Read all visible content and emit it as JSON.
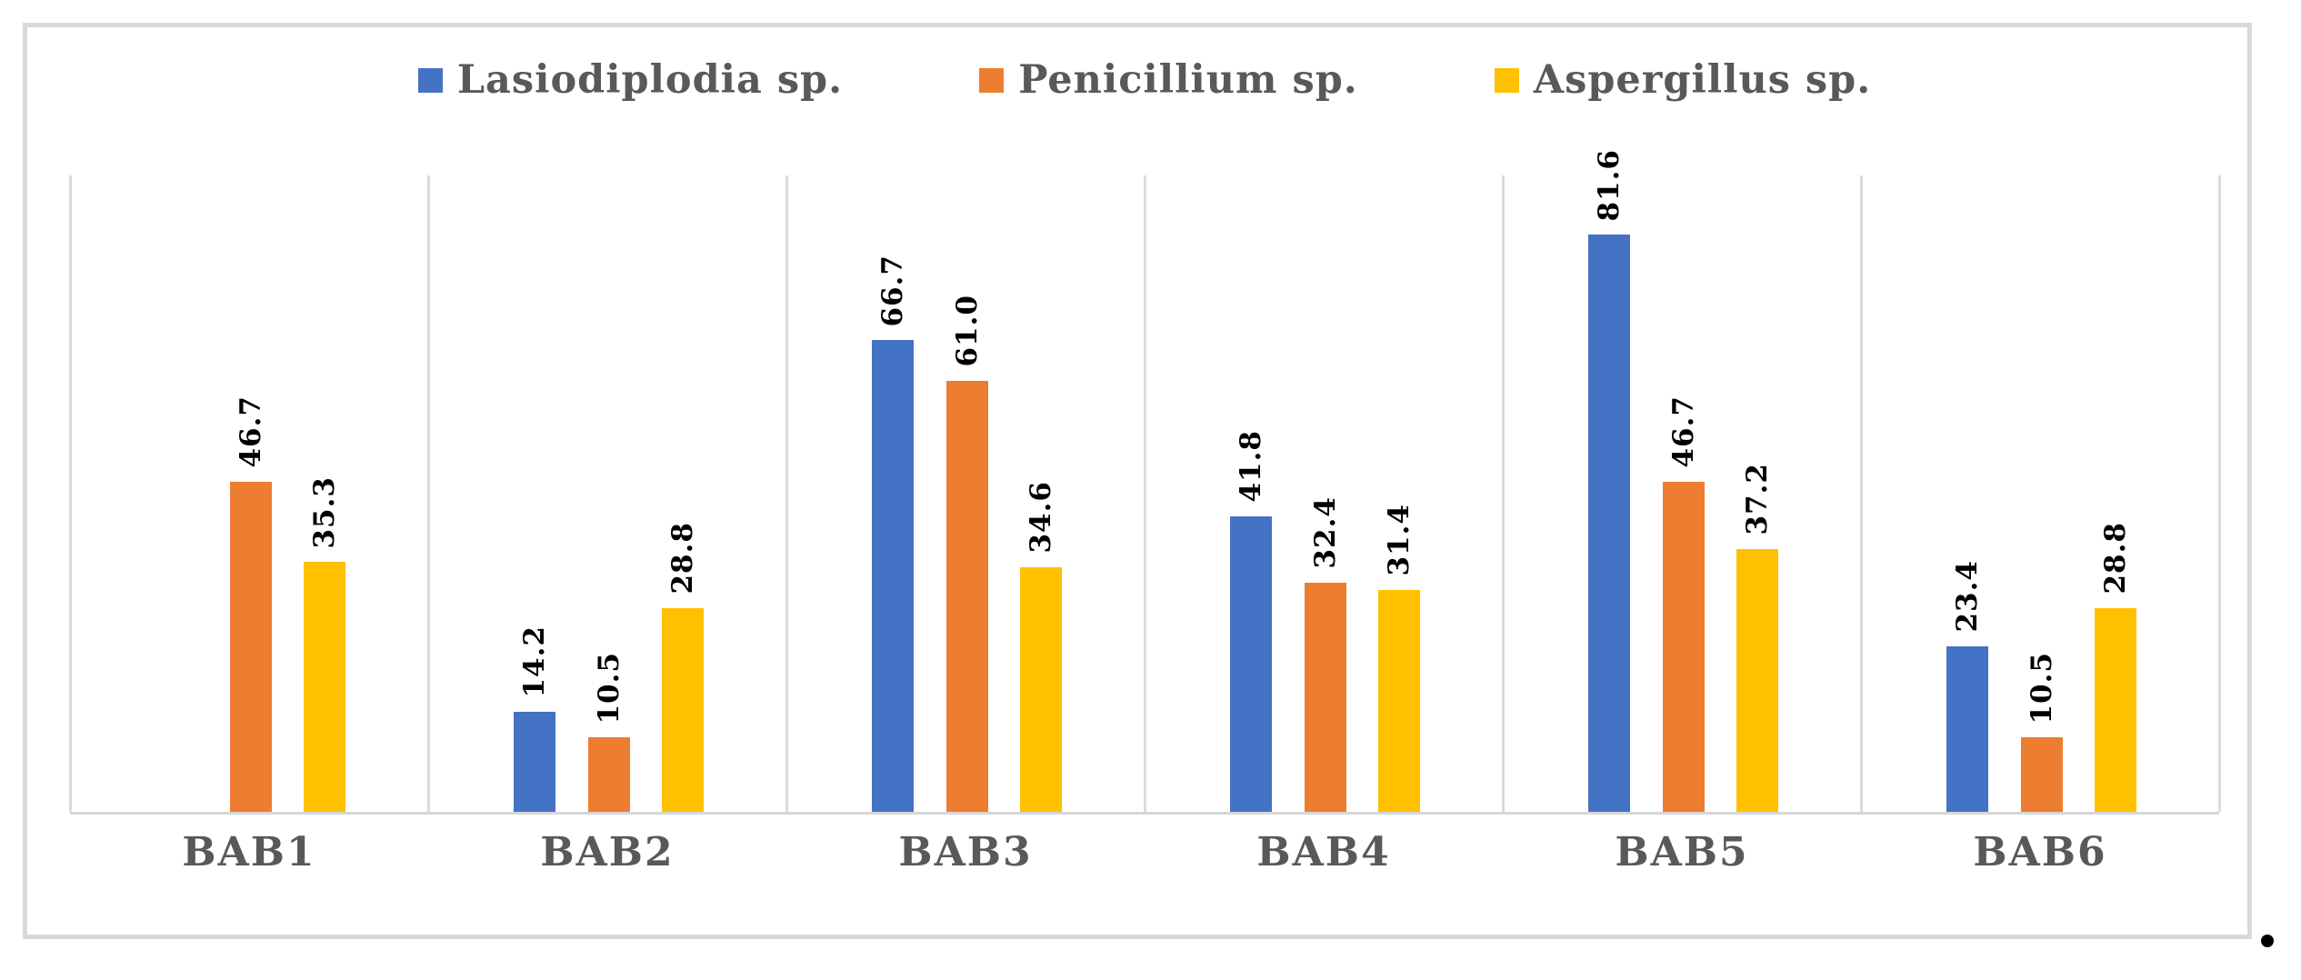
{
  "chart_data": {
    "type": "bar",
    "title": "",
    "xlabel": "",
    "ylabel": "",
    "categories": [
      "BAB1",
      "BAB2",
      "BAB3",
      "BAB4",
      "BAB5",
      "BAB6"
    ],
    "series": [
      {
        "name": "Lasiodiplodia sp.",
        "color": "#4472C4",
        "values": [
          null,
          14.2,
          66.7,
          41.8,
          81.6,
          23.4
        ],
        "labels": [
          "",
          "14.2",
          "66.7",
          "41.8",
          "81.6",
          "23.4"
        ]
      },
      {
        "name": "Penicillium sp.",
        "color": "#ED7D31",
        "values": [
          46.7,
          10.5,
          61.0,
          32.4,
          46.7,
          10.5
        ],
        "labels": [
          "46.7",
          "10.5",
          "61.0",
          "32.4",
          "46.7",
          "10.5"
        ]
      },
      {
        "name": "Aspergillus sp.",
        "color": "#FFC000",
        "values": [
          35.3,
          28.8,
          34.6,
          31.4,
          37.2,
          28.8
        ],
        "labels": [
          "35.3",
          "28.8",
          "34.6",
          "31.4",
          "37.2",
          "28.8"
        ]
      }
    ],
    "ylim": [
      0,
      90
    ],
    "y_axis_visible": false,
    "grid": "vertical category-separator lines only",
    "legend_position": "top center",
    "data_label_style": "rotated 90deg reading bottom-to-top, bold black, above bar tops"
  },
  "styles": {
    "frame_border_color": "#D9D9D9",
    "gridline_color": "#DBDBDB",
    "axis_line_color": "#D6D6D6",
    "category_label_color": "#595959",
    "legend_text_color": "#595959",
    "data_label_color": "#000000",
    "background": "#FFFFFF"
  },
  "trailing_period": "."
}
